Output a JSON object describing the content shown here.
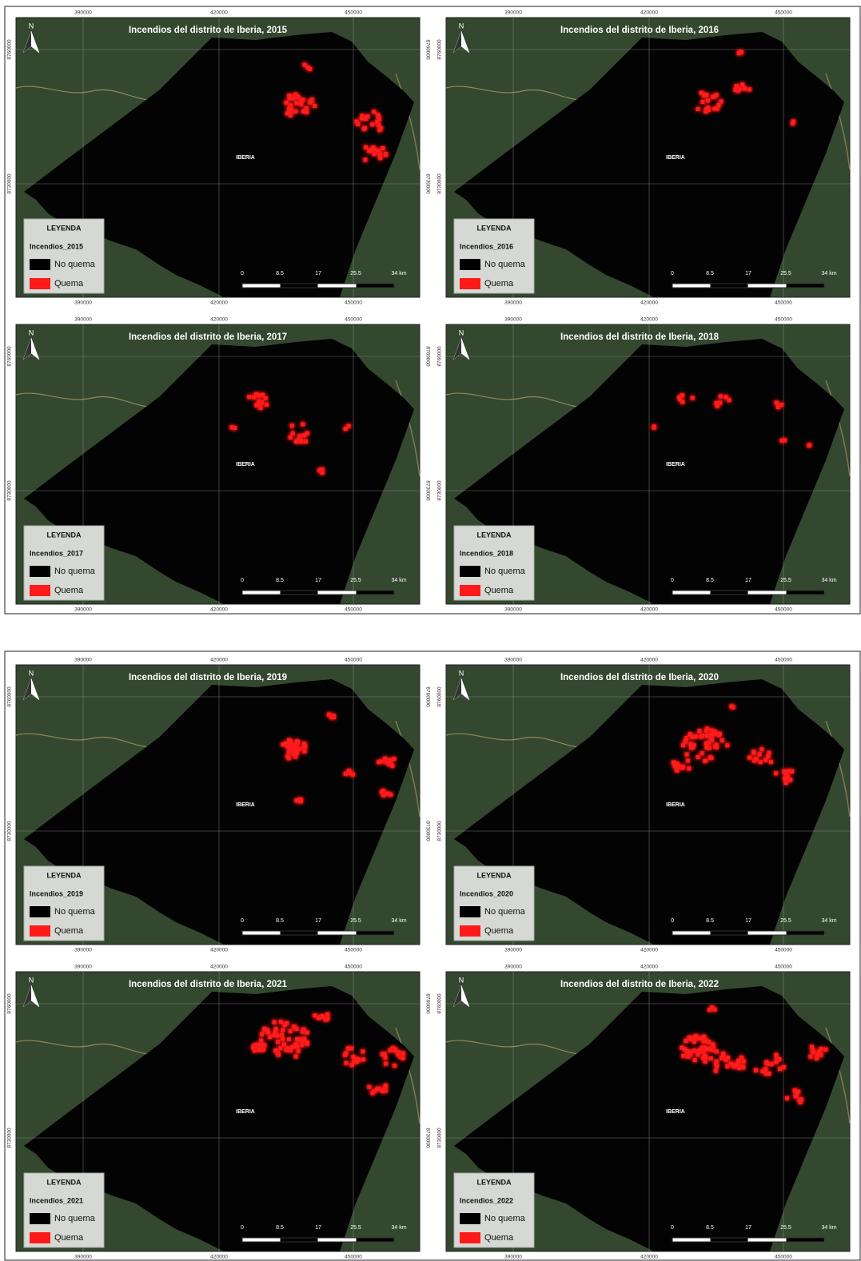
{
  "panels": [
    {
      "title": "Incendios del distrito de Iberia, 2015",
      "legend_layer": "Incendios_2015"
    },
    {
      "title": "Incendios del distrito de Iberia, 2016",
      "legend_layer": "Incendios_2016"
    },
    {
      "title": "Incendios del distrito de Iberia, 2017",
      "legend_layer": "Incendios_2017"
    },
    {
      "title": "Incendios del distrito de Iberia, 2018",
      "legend_layer": "Incendios_2018"
    },
    {
      "title": "Incendios del distrito de Iberia, 2019",
      "legend_layer": "Incendios_2019"
    },
    {
      "title": "Incendios del distrito de Iberia, 2020",
      "legend_layer": "Incendios_2020"
    },
    {
      "title": "Incendios del distrito de Iberia, 2021",
      "legend_layer": "Incendios_2021"
    },
    {
      "title": "Incendios del distrito de Iberia, 2022",
      "legend_layer": "Incendios_2022"
    }
  ],
  "common": {
    "north": "N",
    "district_label": "IBERIA",
    "legend_title": "LEYENDA",
    "legend_items": [
      "No quema",
      "Quema"
    ],
    "scale_labels": [
      "0",
      "8.5",
      "17",
      "25.5",
      "34 km"
    ],
    "x_labels": [
      "390000",
      "420000",
      "450000"
    ],
    "y_labels": [
      "8760000",
      "8730000"
    ]
  }
}
